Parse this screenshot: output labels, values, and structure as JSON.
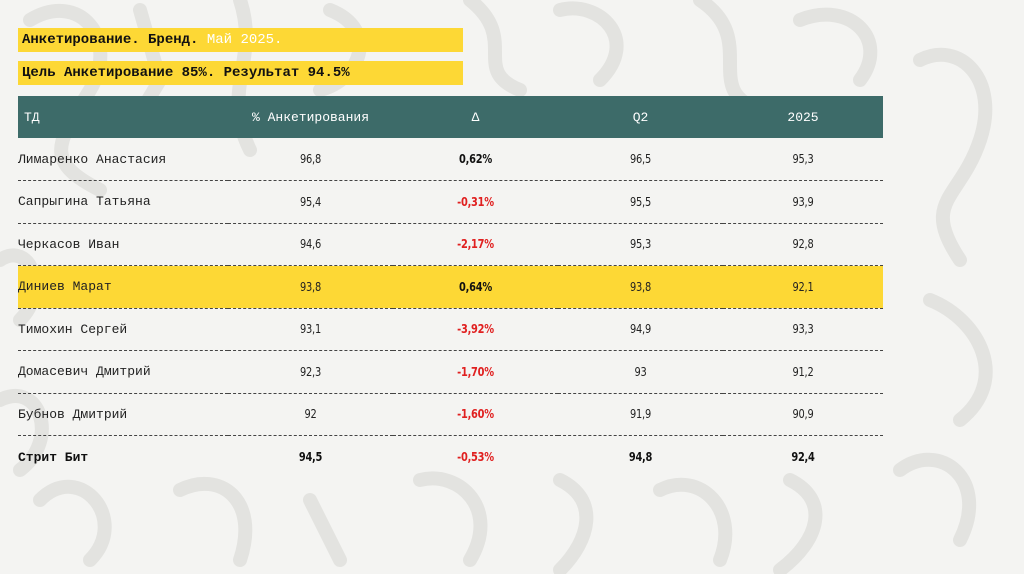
{
  "banner1": {
    "prefix": "Анкетирование. Бренд.",
    "highlight": "Май 2025."
  },
  "banner2": {
    "text": "Цель Анкетирование 85%. Результат 94.5%"
  },
  "colors": {
    "header_bg": "#3d6b69",
    "banner_bg": "#fdd835",
    "negative": "#e02020",
    "highlight_row": "#fdd835"
  },
  "table": {
    "headers": [
      "ТД",
      "% Анкетирования",
      "Δ",
      "Q2",
      "2025"
    ],
    "rows": [
      {
        "name": "Лимаренко Анастасия",
        "pct": "96,8",
        "delta": "0,62%",
        "q2": "96,5",
        "y2025": "95,3"
      },
      {
        "name": "Сапрыгина Татьяна",
        "pct": "95,4",
        "delta": "-0,31%",
        "q2": "95,5",
        "y2025": "93,9"
      },
      {
        "name": "Черкасов Иван",
        "pct": "94,6",
        "delta": "-2,17%",
        "q2": "95,3",
        "y2025": "92,8"
      },
      {
        "name": "Диниев Марат",
        "pct": "93,8",
        "delta": "0,64%",
        "q2": "93,8",
        "y2025": "92,1"
      },
      {
        "name": "Тимохин Сергей",
        "pct": "93,1",
        "delta": "-3,92%",
        "q2": "94,9",
        "y2025": "93,3"
      },
      {
        "name": "Домасевич Дмитрий",
        "pct": "92,3",
        "delta": "-1,70%",
        "q2": "93",
        "y2025": "91,2"
      },
      {
        "name": "Бубнов Дмитрий",
        "pct": "92",
        "delta": "-1,60%",
        "q2": "91,9",
        "y2025": "90,9"
      },
      {
        "name": "Стрит Бит",
        "pct": "94,5",
        "delta": "-0,53%",
        "q2": "94,8",
        "y2025": "92,4"
      }
    ]
  }
}
